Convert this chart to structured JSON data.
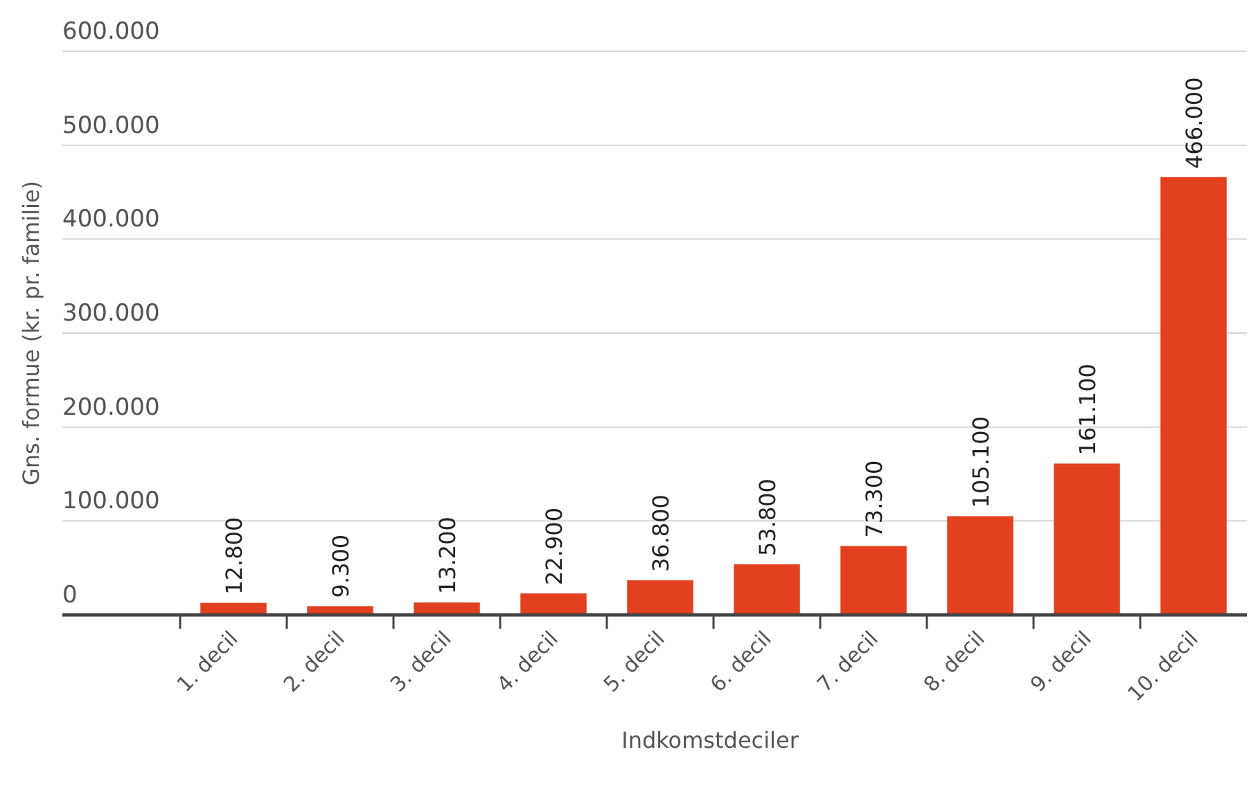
{
  "chart_data": {
    "type": "bar",
    "xlabel": "Indkomstdeciler",
    "ylabel": "Gns. formue (kr. pr. familie)",
    "categories": [
      "1. decil",
      "2. decil",
      "3. decil",
      "4. decil",
      "5. decil",
      "6. decil",
      "7. decil",
      "8. decil",
      "9. decil",
      "10. decil"
    ],
    "values": [
      12800,
      9300,
      13200,
      22900,
      36800,
      53800,
      73300,
      105100,
      161100,
      466000
    ],
    "value_labels": [
      "12.800",
      "9.300",
      "13.200",
      "22.900",
      "36.800",
      "53.800",
      "73.300",
      "105.100",
      "161.100",
      "466.000"
    ],
    "color": "#e2401f",
    "ylim": [
      0,
      600000
    ],
    "yticks": [
      {
        "value": 0,
        "label": "0"
      },
      {
        "value": 100000,
        "label": "100.000"
      },
      {
        "value": 200000,
        "label": "200.000"
      },
      {
        "value": 300000,
        "label": "300.000"
      },
      {
        "value": 400000,
        "label": "400.000"
      },
      {
        "value": 500000,
        "label": "500.000"
      },
      {
        "value": 600000,
        "label": "600.000"
      }
    ],
    "grid": "y"
  }
}
